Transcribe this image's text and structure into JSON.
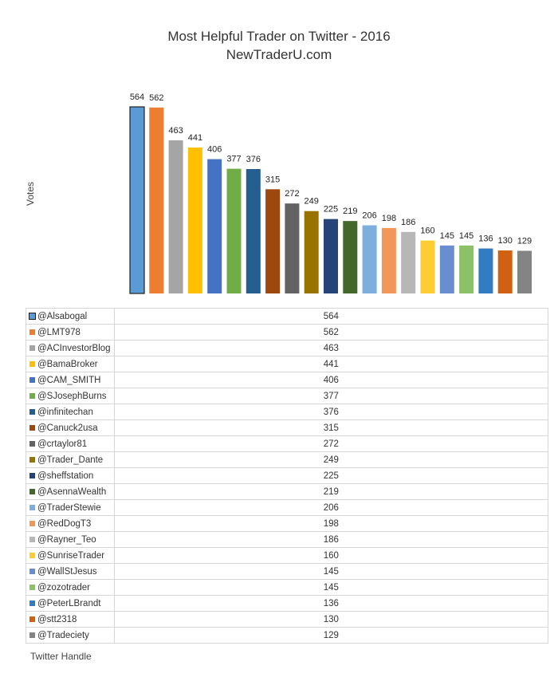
{
  "chart_data": {
    "type": "bar",
    "title": "Most Helpful Trader on Twitter - 2016",
    "subtitle": "NewTraderU.com",
    "ylabel": "Votes",
    "xlabel": "Twitter Handle",
    "ylim": [
      0,
      564
    ],
    "grid": false,
    "categories": [
      "@Alsabogal",
      "@LMT978",
      "@ACInvestorBlog",
      "@BamaBroker",
      "@CAM_SMITH",
      "@SJosephBurns",
      "@infinitechan",
      "@Canuck2usa",
      "@crtaylor81",
      "@Trader_Dante",
      "@sheffstation",
      "@AsennaWealth",
      "@TraderStewie",
      "@RedDogT3",
      "@Rayner_Teo",
      "@SunriseTrader",
      "@WallStJesus",
      "@zozotrader",
      "@PeterLBrandt",
      "@stt2318",
      "@Tradeciety"
    ],
    "values": [
      564,
      562,
      463,
      441,
      406,
      377,
      376,
      315,
      272,
      249,
      225,
      219,
      206,
      198,
      186,
      160,
      145,
      145,
      136,
      130,
      129
    ],
    "colors": [
      "#5b9bd5",
      "#ed7d31",
      "#a5a5a5",
      "#ffc000",
      "#4472c4",
      "#70ad47",
      "#255e91",
      "#9e480e",
      "#636363",
      "#997300",
      "#264478",
      "#43682b",
      "#7cafdd",
      "#f1975a",
      "#b7b7b7",
      "#ffcd33",
      "#698ed0",
      "#8cc168",
      "#327dc2",
      "#d26012",
      "#848484"
    ]
  }
}
